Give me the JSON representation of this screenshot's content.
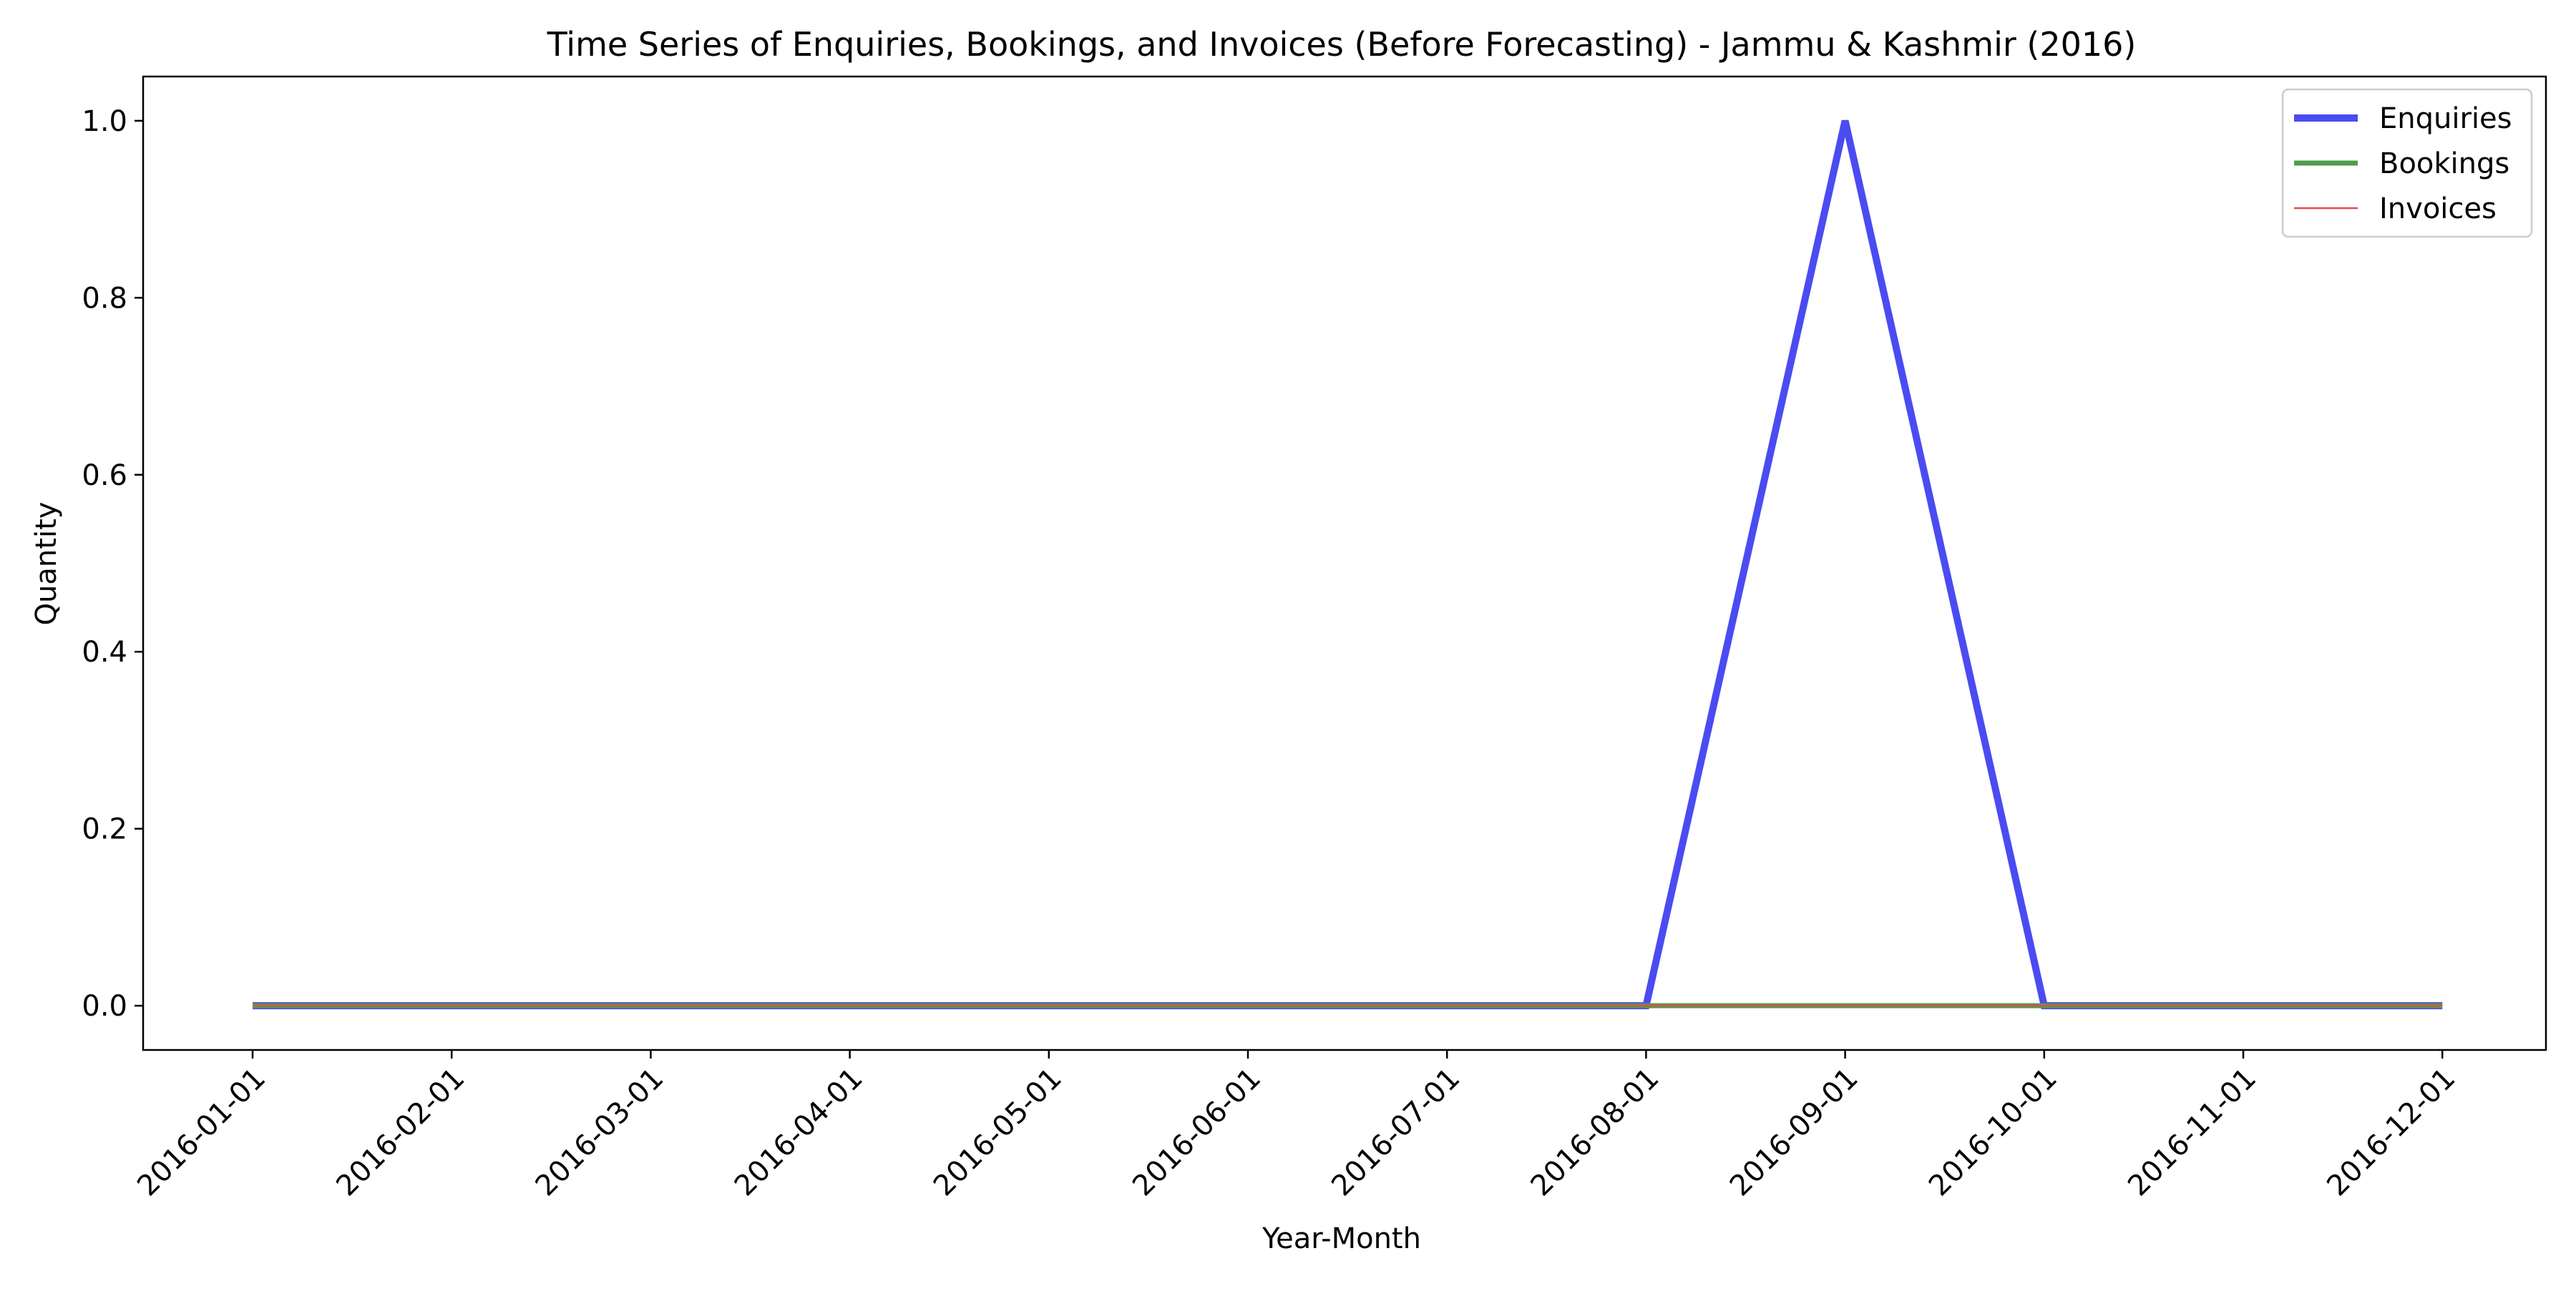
{
  "chart_data": {
    "type": "line",
    "title": "Time Series of Enquiries, Bookings, and Invoices (Before Forecasting) - Jammu & Kashmir (2016)",
    "xlabel": "Year-Month",
    "ylabel": "Quantity",
    "x": [
      "2016-01-01",
      "2016-02-01",
      "2016-03-01",
      "2016-04-01",
      "2016-05-01",
      "2016-06-01",
      "2016-07-01",
      "2016-08-01",
      "2016-09-01",
      "2016-10-01",
      "2016-11-01",
      "2016-12-01"
    ],
    "y_ticks": [
      "0.0",
      "0.2",
      "0.4",
      "0.6",
      "0.8",
      "1.0"
    ],
    "ylim": [
      -0.05,
      1.05
    ],
    "grid": false,
    "legend": {
      "placement": "top-right"
    },
    "series": [
      {
        "name": "Enquiries",
        "color": "#4b4bf2",
        "values": [
          0,
          0,
          0,
          0,
          0,
          0,
          0,
          0,
          1,
          0,
          0,
          0
        ]
      },
      {
        "name": "Bookings",
        "color": "#4c9e4c",
        "values": [
          0,
          0,
          0,
          0,
          0,
          0,
          0,
          0,
          0,
          0,
          0,
          0
        ]
      },
      {
        "name": "Invoices",
        "color": "#e84a4a",
        "values": [
          0,
          0,
          0,
          0,
          0,
          0,
          0,
          0,
          0,
          0,
          0,
          0
        ]
      }
    ]
  }
}
